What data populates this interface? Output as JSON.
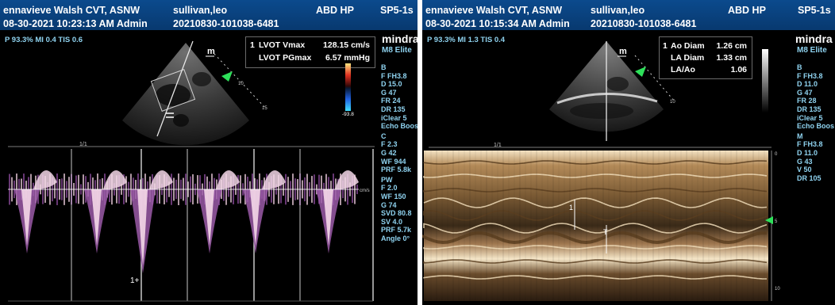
{
  "left": {
    "header": {
      "operator": "ennavieve Walsh CVT, ASNW",
      "patient": "sullivan,leo",
      "exam": "ABD HP",
      "probe": "SP5-1s",
      "datetime": "08-30-2021 10:23:13 AM Admin",
      "exam_id": "20210830-101038-6481"
    },
    "power_line": "P 93.3% MI 0.4 TIS 0.6",
    "logo": "mindra",
    "model": "M8 Elite",
    "measurements": {
      "index": "1",
      "rows": [
        {
          "label": "LVOT Vmax",
          "value": "128.15 cm/s"
        },
        {
          "label": "LVOT PGmax",
          "value": "6.57 mmHg"
        }
      ]
    },
    "params": [
      {
        "text": "B",
        "heading": true
      },
      {
        "text": "F FH3.8"
      },
      {
        "text": "D 15.0"
      },
      {
        "text": "G 47"
      },
      {
        "text": "FR 24"
      },
      {
        "text": "DR 135"
      },
      {
        "text": "iClear 5"
      },
      {
        "text": "Echo Boos"
      },
      {
        "text": "C",
        "heading": true
      },
      {
        "text": "F 2.3"
      },
      {
        "text": "G 42"
      },
      {
        "text": "WF 944"
      },
      {
        "text": "PRF 5.8k"
      },
      {
        "text": "PW",
        "heading": true
      },
      {
        "text": "F 2.0"
      },
      {
        "text": "WF 150"
      },
      {
        "text": "G 74"
      },
      {
        "text": "SVD 80.8"
      },
      {
        "text": "SV 4.0"
      },
      {
        "text": "PRF 5.7k"
      },
      {
        "text": "Angle 0°"
      }
    ],
    "colorbar_value": "-93.8",
    "sector_label": "m",
    "timeline_label": "1/1",
    "baseline_unit": "cm/s",
    "caliper_mark": "1+"
  },
  "right": {
    "header": {
      "operator": "ennavieve Walsh CVT, ASNW",
      "patient": "sullivan,leo",
      "exam": "ABD HP",
      "probe": "SP5-1s",
      "datetime": "08-30-2021 10:15:34 AM Admin",
      "exam_id": "20210830-101038-6481"
    },
    "power_line": "P 93.3% MI 1.3 TIS 0.4",
    "logo": "mindra",
    "model": "M8 Elite",
    "measurements": {
      "index": "1",
      "rows": [
        {
          "label": "Ao Diam",
          "value": "1.26 cm"
        },
        {
          "label": "LA Diam",
          "value": "1.33 cm"
        },
        {
          "label": "LA/Ao",
          "value": "1.06"
        }
      ]
    },
    "params": [
      {
        "text": "B",
        "heading": true
      },
      {
        "text": "F FH3.8"
      },
      {
        "text": "D 11.0"
      },
      {
        "text": "G 47"
      },
      {
        "text": "FR 28"
      },
      {
        "text": "DR 135"
      },
      {
        "text": "iClear 5"
      },
      {
        "text": "Echo Boos"
      },
      {
        "text": "M",
        "heading": true
      },
      {
        "text": "F FH3.8"
      },
      {
        "text": "D 11.0"
      },
      {
        "text": "G 43"
      },
      {
        "text": "V 50"
      },
      {
        "text": "DR 105"
      }
    ],
    "sector_label": "m",
    "timeline_label": "1/1",
    "depth_ticks": [
      "0",
      "5",
      "10"
    ],
    "caliper_marks": [
      "1",
      "T"
    ]
  },
  "colors": {
    "header_blue": "#0b4a8d",
    "param_cyan": "#8fd3f0",
    "marker_green": "#2ee05a",
    "doppler_white": "#ffffff",
    "doppler_purple": "#7a3d8c",
    "mmode_sepia": "#c8a070"
  }
}
